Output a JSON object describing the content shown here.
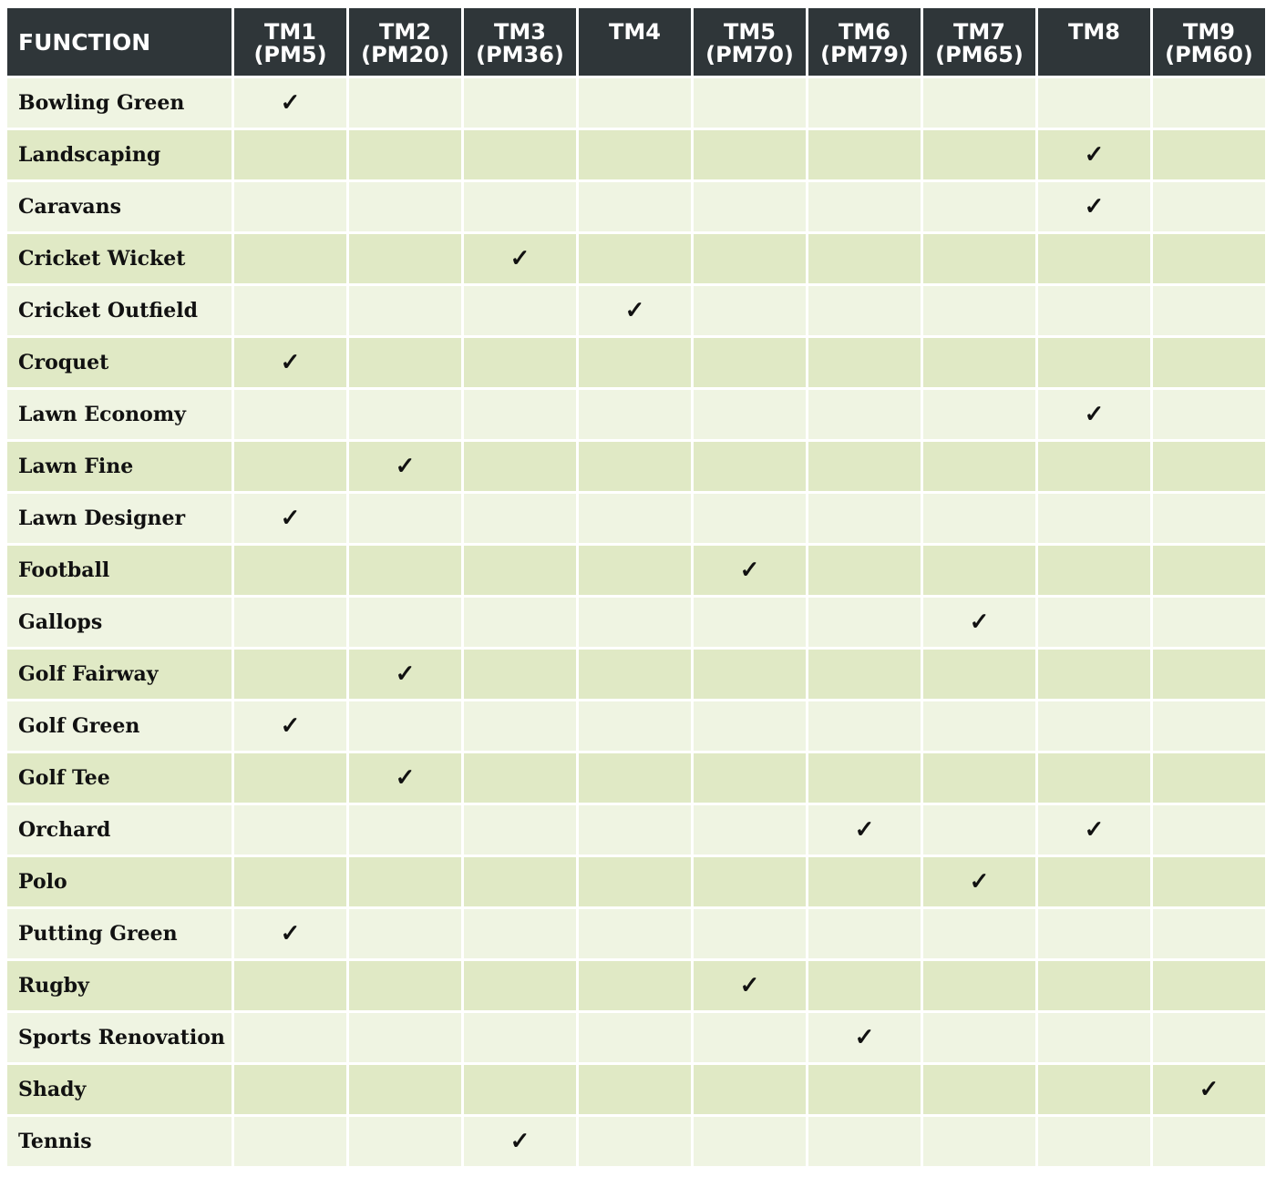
{
  "colors": {
    "header_bg": "#2f3639",
    "row_light": "#eff4e2",
    "row_dark": "#e0e9c5"
  },
  "check_symbol": "✓",
  "header": {
    "function_label": "FUNCTION",
    "columns": [
      "TM1\n(PM5)",
      "TM2\n(PM20)",
      "TM3\n(PM36)",
      "TM4",
      "TM5\n(PM70)",
      "TM6\n(PM79)",
      "TM7\n(PM65)",
      "TM8",
      "TM9\n(PM60)"
    ]
  },
  "rows": [
    {
      "label": "Bowling Green",
      "checks": [
        1,
        0,
        0,
        0,
        0,
        0,
        0,
        0,
        0
      ]
    },
    {
      "label": "Landscaping",
      "checks": [
        0,
        0,
        0,
        0,
        0,
        0,
        0,
        1,
        0
      ]
    },
    {
      "label": "Caravans",
      "checks": [
        0,
        0,
        0,
        0,
        0,
        0,
        0,
        1,
        0
      ]
    },
    {
      "label": "Cricket Wicket",
      "checks": [
        0,
        0,
        1,
        0,
        0,
        0,
        0,
        0,
        0
      ]
    },
    {
      "label": "Cricket Outfield",
      "checks": [
        0,
        0,
        0,
        1,
        0,
        0,
        0,
        0,
        0
      ]
    },
    {
      "label": "Croquet",
      "checks": [
        1,
        0,
        0,
        0,
        0,
        0,
        0,
        0,
        0
      ]
    },
    {
      "label": "Lawn Economy",
      "checks": [
        0,
        0,
        0,
        0,
        0,
        0,
        0,
        1,
        0
      ]
    },
    {
      "label": "Lawn Fine",
      "checks": [
        0,
        1,
        0,
        0,
        0,
        0,
        0,
        0,
        0
      ]
    },
    {
      "label": "Lawn Designer",
      "checks": [
        1,
        0,
        0,
        0,
        0,
        0,
        0,
        0,
        0
      ]
    },
    {
      "label": "Football",
      "checks": [
        0,
        0,
        0,
        0,
        1,
        0,
        0,
        0,
        0
      ]
    },
    {
      "label": "Gallops",
      "checks": [
        0,
        0,
        0,
        0,
        0,
        0,
        1,
        0,
        0
      ]
    },
    {
      "label": "Golf Fairway",
      "checks": [
        0,
        1,
        0,
        0,
        0,
        0,
        0,
        0,
        0
      ]
    },
    {
      "label": "Golf Green",
      "checks": [
        1,
        0,
        0,
        0,
        0,
        0,
        0,
        0,
        0
      ]
    },
    {
      "label": "Golf Tee",
      "checks": [
        0,
        1,
        0,
        0,
        0,
        0,
        0,
        0,
        0
      ]
    },
    {
      "label": "Orchard",
      "checks": [
        0,
        0,
        0,
        0,
        0,
        1,
        0,
        1,
        0
      ]
    },
    {
      "label": "Polo",
      "checks": [
        0,
        0,
        0,
        0,
        0,
        0,
        1,
        0,
        0
      ]
    },
    {
      "label": "Putting Green",
      "checks": [
        1,
        0,
        0,
        0,
        0,
        0,
        0,
        0,
        0
      ]
    },
    {
      "label": "Rugby",
      "checks": [
        0,
        0,
        0,
        0,
        1,
        0,
        0,
        0,
        0
      ]
    },
    {
      "label": "Sports Renovation",
      "checks": [
        0,
        0,
        0,
        0,
        0,
        1,
        0,
        0,
        0
      ]
    },
    {
      "label": "Shady",
      "checks": [
        0,
        0,
        0,
        0,
        0,
        0,
        0,
        0,
        1
      ]
    },
    {
      "label": "Tennis",
      "checks": [
        0,
        0,
        1,
        0,
        0,
        0,
        0,
        0,
        0
      ]
    }
  ]
}
